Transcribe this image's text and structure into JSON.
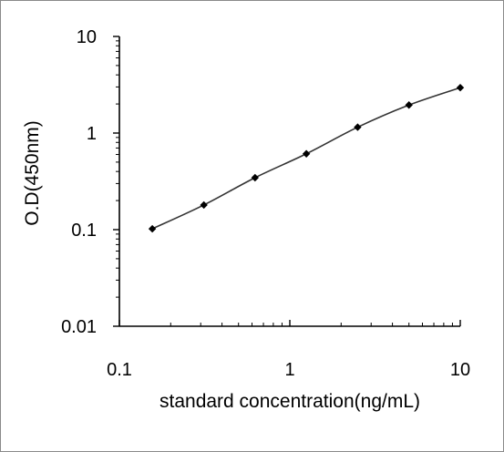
{
  "chart_data": {
    "type": "line",
    "xscale": "log",
    "yscale": "log",
    "xlim": [
      0.1,
      10
    ],
    "ylim": [
      0.01,
      10
    ],
    "x_ticks": [
      "0.1",
      "1",
      "10"
    ],
    "y_ticks": [
      "10",
      "1",
      "0.1",
      "0.01"
    ],
    "xlabel": "standard concentration(ng/mL)",
    "ylabel": "O.D(450nm)",
    "grid": false,
    "legend": "none",
    "colors": {
      "line": "#333333",
      "marker": "#000000",
      "axis": "#000000"
    },
    "series": [
      {
        "x": [
          0.156,
          0.313,
          0.625,
          1.25,
          2.5,
          5,
          10
        ],
        "y": [
          0.102,
          0.18,
          0.345,
          0.61,
          1.15,
          1.95,
          2.95
        ]
      }
    ]
  }
}
